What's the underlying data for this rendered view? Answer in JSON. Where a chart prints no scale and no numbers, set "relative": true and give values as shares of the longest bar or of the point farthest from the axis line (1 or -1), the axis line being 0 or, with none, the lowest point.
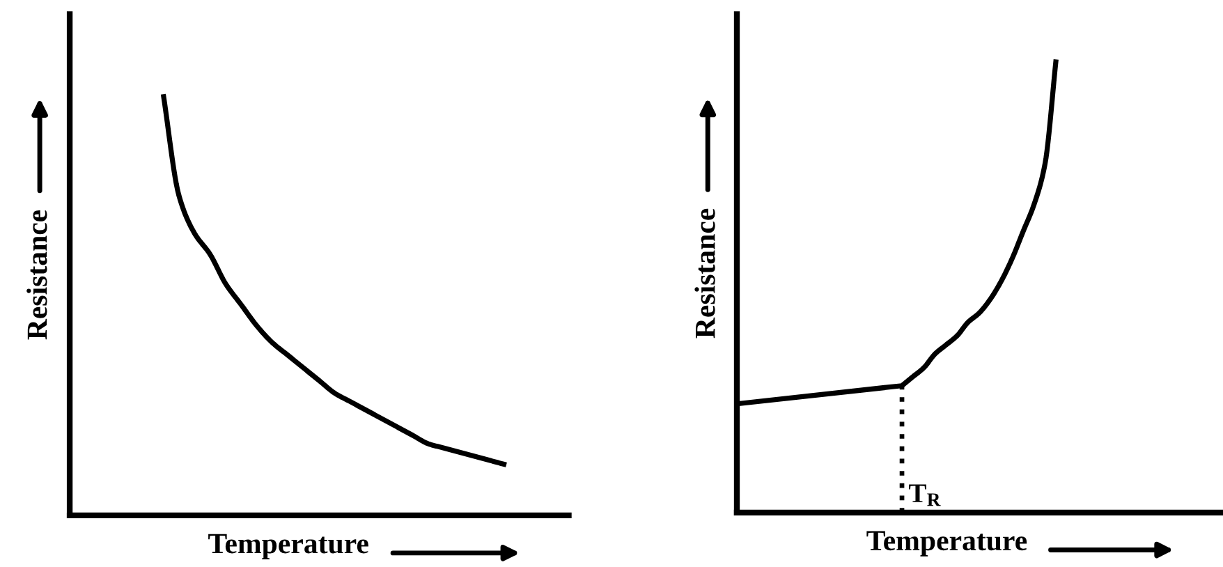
{
  "chart_data": [
    {
      "type": "line",
      "relative": true,
      "xlabel": "Temperature",
      "ylabel": "Resistance",
      "categories": [
        null,
        null,
        null,
        null,
        null,
        null,
        null,
        null,
        null,
        null,
        null,
        null,
        null,
        null,
        null,
        null,
        null,
        null,
        null,
        null,
        null,
        null,
        null,
        null,
        null,
        null,
        null,
        null,
        null,
        null,
        null,
        null,
        null
      ],
      "series": [
        {
          "color": "#000000",
          "values": [
            null,
            null,
            null,
            null,
            null,
            null,
            1,
            0.76,
            0.67,
            0.62,
            0.55,
            0.5,
            0.45,
            0.41,
            0.38,
            0.35,
            0.32,
            0.29,
            0.27,
            0.25,
            0.23,
            0.21,
            0.19,
            0.17,
            0.16,
            0.15,
            0.14,
            0.13,
            0.12,
            null,
            null,
            null,
            null
          ]
        }
      ]
    },
    {
      "type": "line",
      "relative": true,
      "xlabel": "Temperature",
      "ylabel": "Resistance",
      "categories": [
        null,
        null,
        null,
        null,
        null,
        null,
        null,
        null,
        null,
        null,
        null,
        null,
        null,
        null,
        null,
        null,
        null,
        null,
        null,
        null,
        null,
        null,
        null,
        null,
        null,
        null,
        null,
        null,
        null,
        null,
        null,
        null,
        null,
        null,
        null,
        null,
        null,
        null,
        null,
        null,
        null,
        null,
        null,
        null,
        null
      ],
      "series": [
        {
          "color": "#000000",
          "values": [
            0.24,
            null,
            null,
            null,
            null,
            null,
            null,
            null,
            null,
            null,
            null,
            null,
            null,
            null,
            null,
            0.28,
            0.3,
            0.32,
            0.35,
            0.37,
            0.39,
            0.42,
            0.44,
            0.47,
            0.51,
            0.56,
            0.62,
            0.68,
            0.77,
            1,
            null,
            null,
            null,
            null,
            null,
            null,
            null,
            null,
            null,
            null,
            null,
            null,
            null,
            null,
            null
          ]
        }
      ],
      "annotations": [
        "T$_{R}$"
      ]
    }
  ]
}
